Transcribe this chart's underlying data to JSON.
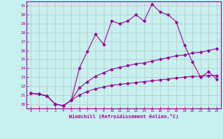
{
  "xlabel": "Windchill (Refroidissement éolien,°C)",
  "ylabel": "",
  "bg_color": "#c8f0ee",
  "line_color": "#990099",
  "grid_color": "#b0c8c8",
  "xlim": [
    -0.5,
    23.5
  ],
  "ylim": [
    19.5,
    31.5
  ],
  "yticks": [
    20,
    21,
    22,
    23,
    24,
    25,
    26,
    27,
    28,
    29,
    30,
    31
  ],
  "xticks": [
    0,
    1,
    2,
    3,
    4,
    5,
    6,
    7,
    8,
    9,
    10,
    11,
    12,
    13,
    14,
    15,
    16,
    17,
    18,
    19,
    20,
    21,
    22,
    23
  ],
  "line1_x": [
    0,
    1,
    2,
    3,
    4,
    5,
    6,
    7,
    8,
    9,
    10,
    11,
    12,
    13,
    14,
    15,
    16,
    17,
    18,
    19,
    20,
    21,
    22,
    23
  ],
  "line1_y": [
    21.2,
    21.1,
    20.9,
    20.0,
    19.8,
    20.4,
    24.0,
    25.9,
    27.8,
    26.7,
    29.3,
    29.0,
    29.3,
    30.0,
    29.3,
    31.2,
    30.3,
    30.0,
    29.2,
    26.6,
    24.7,
    23.0,
    23.6,
    22.8
  ],
  "line2_x": [
    0,
    1,
    2,
    3,
    4,
    5,
    6,
    7,
    8,
    9,
    10,
    11,
    12,
    13,
    14,
    15,
    16,
    17,
    18,
    19,
    20,
    21,
    22,
    23
  ],
  "line2_y": [
    21.2,
    21.1,
    20.9,
    20.0,
    19.8,
    20.4,
    21.8,
    22.5,
    23.1,
    23.5,
    23.9,
    24.1,
    24.3,
    24.5,
    24.6,
    24.8,
    25.0,
    25.2,
    25.4,
    25.5,
    25.7,
    25.8,
    26.0,
    26.2
  ],
  "line3_x": [
    0,
    1,
    2,
    3,
    4,
    5,
    6,
    7,
    8,
    9,
    10,
    11,
    12,
    13,
    14,
    15,
    16,
    17,
    18,
    19,
    20,
    21,
    22,
    23
  ],
  "line3_y": [
    21.2,
    21.1,
    20.9,
    20.0,
    19.8,
    20.4,
    21.0,
    21.4,
    21.7,
    21.9,
    22.1,
    22.2,
    22.3,
    22.4,
    22.5,
    22.6,
    22.7,
    22.8,
    22.9,
    23.0,
    23.1,
    23.1,
    23.2,
    23.2
  ]
}
